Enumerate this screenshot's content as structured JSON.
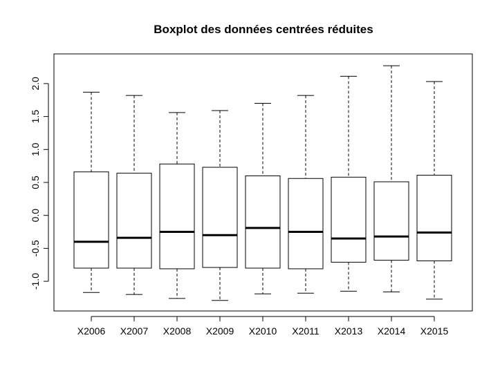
{
  "chart_data": {
    "type": "boxplot",
    "title": "Boxplot des données centrées réduites",
    "xlabel": "",
    "ylabel": "",
    "ylim": [
      -1.45,
      2.45
    ],
    "yticks": [
      "-1.0",
      "-0.5",
      "0.0",
      "0.5",
      "1.0",
      "1.5",
      "2.0"
    ],
    "categories": [
      "X2006",
      "X2007",
      "X2008",
      "X2009",
      "X2010",
      "X2011",
      "X2013",
      "X2014",
      "X2015"
    ],
    "boxes": [
      {
        "min": -1.17,
        "q1": -0.8,
        "median": -0.4,
        "q3": 0.66,
        "max": 1.87
      },
      {
        "min": -1.2,
        "q1": -0.8,
        "median": -0.34,
        "q3": 0.64,
        "max": 1.82
      },
      {
        "min": -1.26,
        "q1": -0.81,
        "median": -0.25,
        "q3": 0.78,
        "max": 1.56
      },
      {
        "min": -1.29,
        "q1": -0.79,
        "median": -0.3,
        "q3": 0.73,
        "max": 1.59
      },
      {
        "min": -1.19,
        "q1": -0.8,
        "median": -0.19,
        "q3": 0.6,
        "max": 1.7
      },
      {
        "min": -1.18,
        "q1": -0.81,
        "median": -0.25,
        "q3": 0.56,
        "max": 1.82
      },
      {
        "min": -1.15,
        "q1": -0.71,
        "median": -0.35,
        "q3": 0.58,
        "max": 2.11
      },
      {
        "min": -1.16,
        "q1": -0.68,
        "median": -0.32,
        "q3": 0.51,
        "max": 2.27
      },
      {
        "min": -1.27,
        "q1": -0.69,
        "median": -0.26,
        "q3": 0.61,
        "max": 2.03
      }
    ],
    "grid": false,
    "legend": "none"
  }
}
